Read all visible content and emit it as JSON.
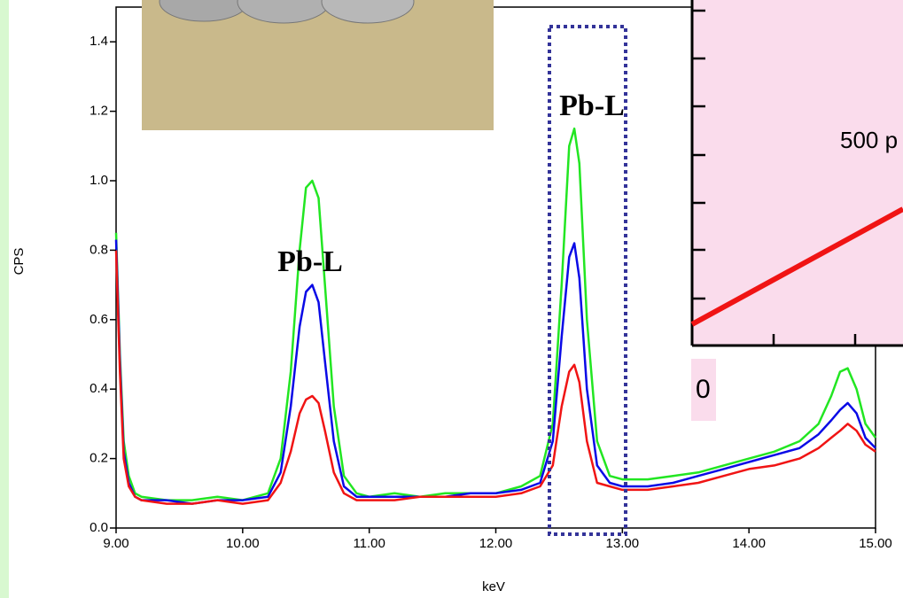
{
  "chart_data": {
    "type": "line",
    "x_label": "keV",
    "y_label": "CPS",
    "x": [
      9.0,
      9.03,
      9.06,
      9.1,
      9.15,
      9.2,
      9.4,
      9.6,
      9.8,
      10.0,
      10.2,
      10.3,
      10.38,
      10.45,
      10.5,
      10.55,
      10.6,
      10.65,
      10.72,
      10.8,
      10.9,
      11.0,
      11.2,
      11.4,
      11.6,
      11.8,
      12.0,
      12.2,
      12.35,
      12.45,
      12.52,
      12.58,
      12.62,
      12.66,
      12.72,
      12.8,
      12.9,
      13.0,
      13.2,
      13.4,
      13.6,
      13.8,
      14.0,
      14.2,
      14.4,
      14.55,
      14.65,
      14.72,
      14.78,
      14.85,
      14.92,
      15.0
    ],
    "series": [
      {
        "color": "#22e622",
        "values": [
          0.85,
          0.5,
          0.25,
          0.15,
          0.1,
          0.09,
          0.08,
          0.08,
          0.09,
          0.08,
          0.1,
          0.2,
          0.45,
          0.8,
          0.98,
          1.0,
          0.95,
          0.7,
          0.35,
          0.15,
          0.1,
          0.09,
          0.1,
          0.09,
          0.1,
          0.1,
          0.1,
          0.12,
          0.15,
          0.3,
          0.7,
          1.1,
          1.15,
          1.05,
          0.6,
          0.25,
          0.15,
          0.14,
          0.14,
          0.15,
          0.16,
          0.18,
          0.2,
          0.22,
          0.25,
          0.3,
          0.38,
          0.45,
          0.46,
          0.4,
          0.3,
          0.26
        ]
      },
      {
        "color": "#0a0ae6",
        "values": [
          0.83,
          0.48,
          0.22,
          0.13,
          0.09,
          0.08,
          0.08,
          0.07,
          0.08,
          0.08,
          0.09,
          0.16,
          0.35,
          0.58,
          0.68,
          0.7,
          0.65,
          0.48,
          0.25,
          0.12,
          0.09,
          0.09,
          0.09,
          0.09,
          0.09,
          0.1,
          0.1,
          0.11,
          0.13,
          0.25,
          0.55,
          0.78,
          0.82,
          0.72,
          0.4,
          0.18,
          0.13,
          0.12,
          0.12,
          0.13,
          0.15,
          0.17,
          0.19,
          0.21,
          0.23,
          0.27,
          0.31,
          0.34,
          0.36,
          0.33,
          0.26,
          0.23
        ]
      },
      {
        "color": "#f01414",
        "values": [
          0.8,
          0.45,
          0.2,
          0.12,
          0.09,
          0.08,
          0.07,
          0.07,
          0.08,
          0.07,
          0.08,
          0.13,
          0.22,
          0.33,
          0.37,
          0.38,
          0.36,
          0.28,
          0.16,
          0.1,
          0.08,
          0.08,
          0.08,
          0.09,
          0.09,
          0.09,
          0.09,
          0.1,
          0.12,
          0.18,
          0.35,
          0.45,
          0.47,
          0.42,
          0.25,
          0.13,
          0.12,
          0.11,
          0.11,
          0.12,
          0.13,
          0.15,
          0.17,
          0.18,
          0.2,
          0.23,
          0.26,
          0.28,
          0.3,
          0.28,
          0.24,
          0.22
        ]
      }
    ],
    "xlim": [
      9,
      15
    ],
    "xticks": [
      {
        "value": 9,
        "label": "9.00"
      },
      {
        "value": 10,
        "label": "10.00"
      },
      {
        "value": 11,
        "label": "11.00"
      },
      {
        "value": 12,
        "label": "12.00"
      },
      {
        "value": 13,
        "label": "13.00"
      },
      {
        "value": 14,
        "label": "14.00"
      },
      {
        "value": 15,
        "label": "15.00"
      }
    ],
    "ylim": [
      0,
      1.5
    ],
    "yticks": [
      {
        "value": 0,
        "label": "0.0"
      },
      0.2,
      0.4,
      0.6,
      0.8,
      {
        "value": 1,
        "label": "1.0"
      },
      1.2,
      1.4
    ],
    "annotations": [
      "Pb-L",
      "Pb-L",
      "500 p",
      "0"
    ]
  }
}
